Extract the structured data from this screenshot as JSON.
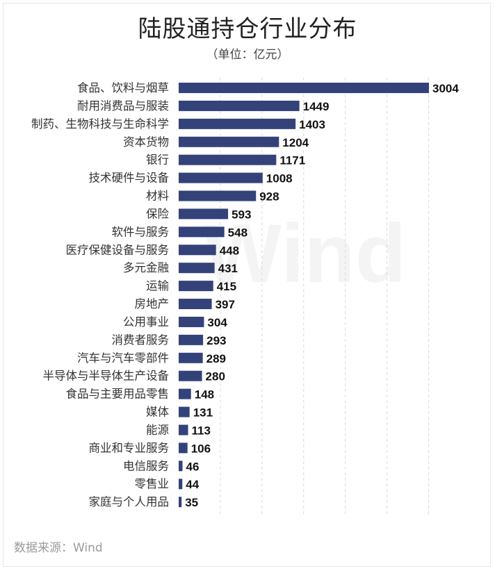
{
  "title": "陆股通持仓行业分布",
  "subtitle": "（单位：亿元）",
  "source": "数据来源：Wind",
  "watermark": "Wind",
  "colors": {
    "bar": "#34427a",
    "grid": "#d9d9d9"
  },
  "chart_data": {
    "type": "bar",
    "orientation": "horizontal",
    "title": "陆股通持仓行业分布",
    "subtitle": "（单位：亿元）",
    "unit": "亿元",
    "xlim": [
      0,
      3400
    ],
    "grid": true,
    "categories": [
      "食品、饮料与烟草",
      "耐用消费品与服装",
      "制药、生物科技与生命科学",
      "资本货物",
      "银行",
      "技术硬件与设备",
      "材料",
      "保险",
      "软件与服务",
      "医疗保健设备与服务",
      "多元金融",
      "运输",
      "房地产",
      "公用事业",
      "消费者服务",
      "汽车与汽车零部件",
      "半导体与半导体生产设备",
      "食品与主要用品零售",
      "媒体",
      "能源",
      "商业和专业服务",
      "电信服务",
      "零售业",
      "家庭与个人用品"
    ],
    "values": [
      3004,
      1449,
      1403,
      1204,
      1171,
      1008,
      928,
      593,
      548,
      448,
      431,
      415,
      397,
      304,
      293,
      289,
      280,
      148,
      131,
      113,
      106,
      46,
      44,
      35
    ]
  }
}
